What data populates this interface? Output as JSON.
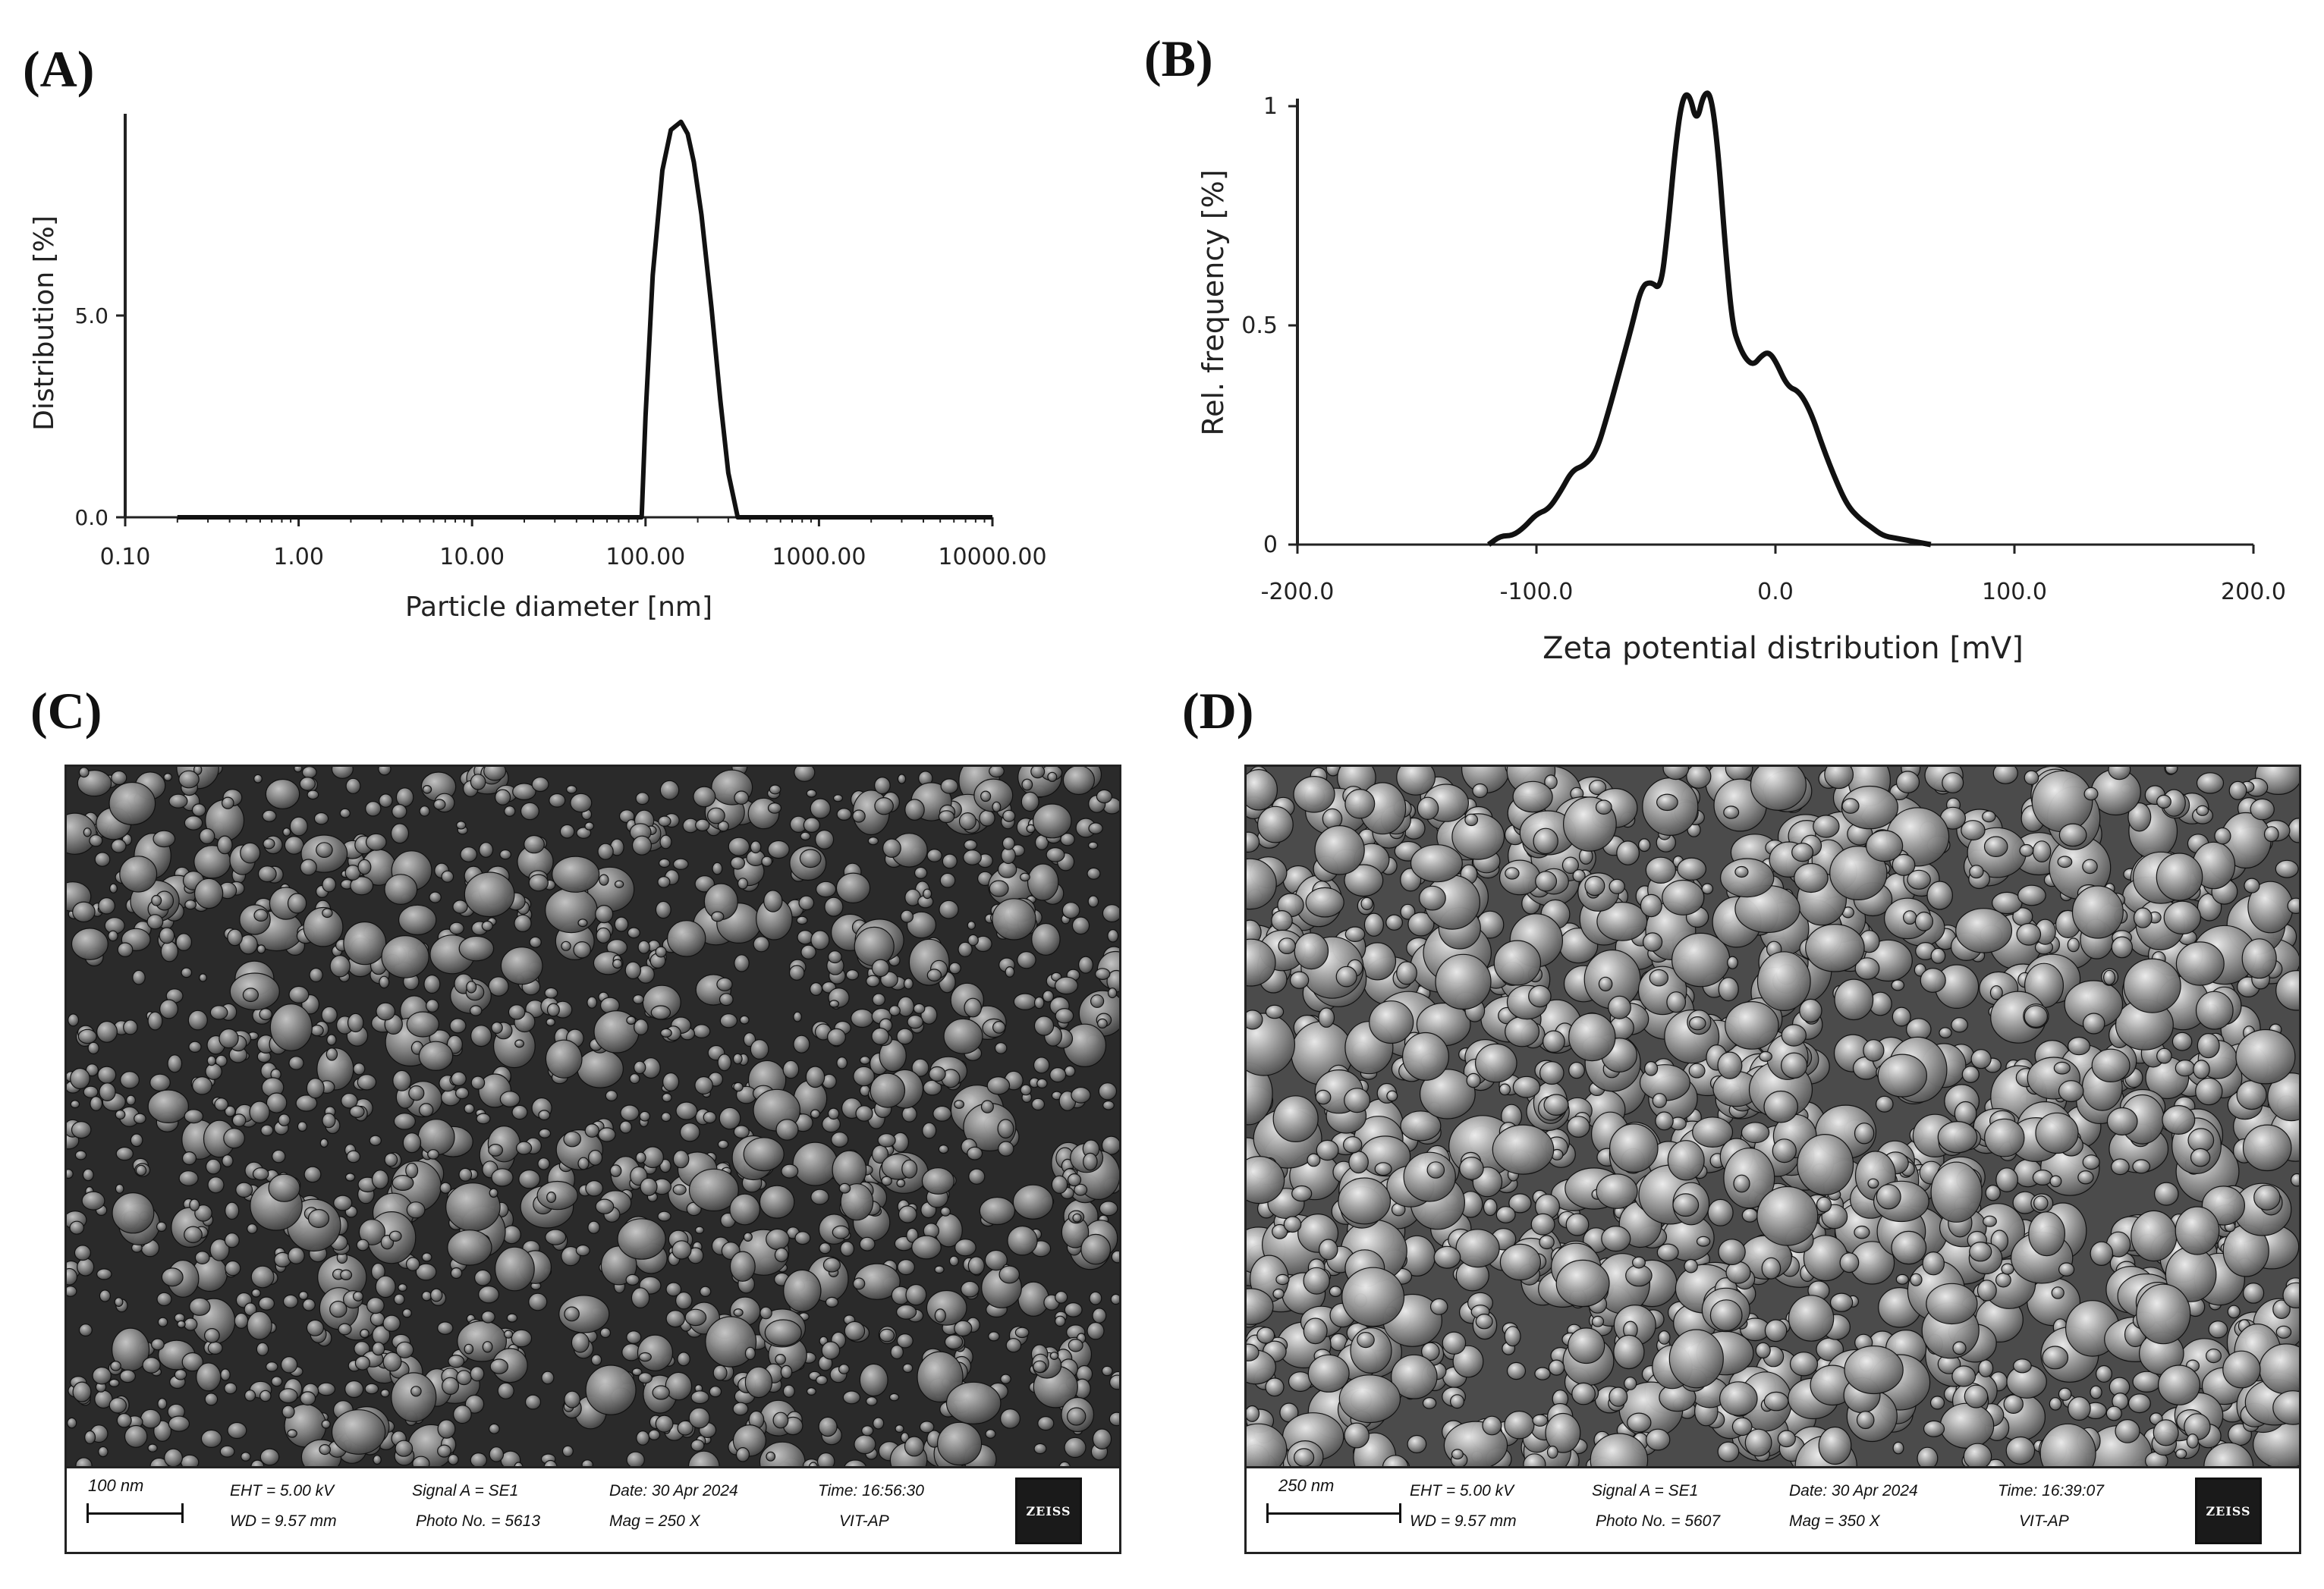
{
  "panels": {
    "a": "(A)",
    "b": "(B)",
    "c": "(C)",
    "d": "(D)"
  },
  "chart_data": [
    {
      "type": "line",
      "panel": "(A)",
      "xlabel": "Particle diameter [nm]",
      "ylabel": "Distribution [%]",
      "xscale": "log",
      "xlim": [
        0.1,
        10000
      ],
      "ylim": [
        0,
        10
      ],
      "x_ticks": [
        "0.10",
        "1.00",
        "10.00",
        "100.00",
        "1000.00",
        "10000.00"
      ],
      "y_ticks": [
        "0.0",
        "5.0"
      ],
      "series": [
        {
          "x": [
            0.2,
            10,
            95,
            100,
            110,
            125,
            140,
            160,
            175,
            190,
            210,
            240,
            270,
            300,
            340,
            10000
          ],
          "y": [
            0,
            0,
            0,
            2.5,
            6.0,
            8.6,
            9.6,
            9.8,
            9.5,
            8.8,
            7.5,
            5.2,
            2.9,
            1.1,
            0,
            0
          ]
        }
      ]
    },
    {
      "type": "line",
      "panel": "(B)",
      "xlabel": "Zeta potential distribution [mV]",
      "ylabel": "Rel. frequency [%]",
      "xlim": [
        -200,
        200
      ],
      "ylim": [
        0,
        1
      ],
      "x_ticks": [
        "-200.0",
        "-100.0",
        "0.0",
        "100.0",
        "200.0"
      ],
      "y_ticks": [
        "0",
        "0.5",
        "1"
      ],
      "series": [
        {
          "x": [
            -120,
            -115,
            -110,
            -105,
            -100,
            -95,
            -90,
            -85,
            -80,
            -75,
            -70,
            -65,
            -60,
            -56,
            -52,
            -48,
            -45,
            -42,
            -39,
            -36,
            -33,
            -30,
            -27,
            -24,
            -21,
            -18,
            -15,
            -12,
            -9,
            -6,
            -3,
            0,
            5,
            10,
            15,
            20,
            25,
            30,
            35,
            40,
            45,
            50,
            55,
            60,
            65
          ],
          "y": [
            0,
            0.02,
            0.02,
            0.04,
            0.07,
            0.08,
            0.12,
            0.17,
            0.18,
            0.21,
            0.3,
            0.4,
            0.5,
            0.59,
            0.6,
            0.58,
            0.72,
            0.9,
            1.02,
            1.03,
            0.96,
            1.03,
            1.03,
            0.9,
            0.68,
            0.5,
            0.45,
            0.42,
            0.41,
            0.43,
            0.44,
            0.42,
            0.36,
            0.35,
            0.3,
            0.22,
            0.15,
            0.09,
            0.06,
            0.04,
            0.02,
            0.015,
            0.01,
            0.005,
            0
          ]
        }
      ]
    }
  ],
  "sem": [
    {
      "scale_label": "100 nm",
      "eht": "EHT =  5.00 kV",
      "wd": "WD = 9.57 mm",
      "signal": "Signal A = SE1",
      "photo": "Photo No. = 5613",
      "date": "Date: 30 Apr 2024",
      "mag": "Mag =    250 X",
      "time": "Time: 16:56:30",
      "site": "VIT-AP",
      "logo": "ZEISS"
    },
    {
      "scale_label": "250 nm",
      "eht": "EHT =  5.00 kV",
      "wd": "WD = 9.57 mm",
      "signal": "Signal A = SE1",
      "photo": "Photo No. = 5607",
      "date": "Date: 30 Apr 2024",
      "mag": "Mag =    350 X",
      "time": "Time: 16:39:07",
      "site": "VIT-AP",
      "logo": "ZEISS"
    }
  ]
}
